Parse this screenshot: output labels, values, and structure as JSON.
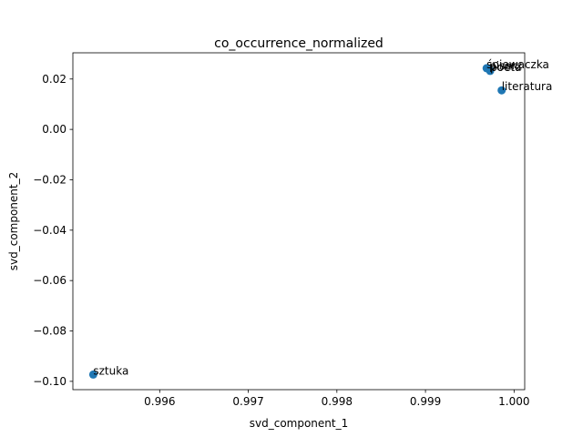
{
  "chart_data": {
    "type": "scatter",
    "title": "co_occurrence_normalized",
    "xlabel": "svd_component_1",
    "ylabel": "svd_component_2",
    "xlim": [
      0.99502,
      1.00012
    ],
    "ylim": [
      -0.1033,
      0.0304
    ],
    "x_ticks": [
      0.996,
      0.997,
      0.998,
      0.999,
      1.0
    ],
    "x_tick_labels": [
      "0.996",
      "0.997",
      "0.998",
      "0.999",
      "1.000"
    ],
    "y_ticks": [
      -0.1,
      -0.08,
      -0.06,
      -0.04,
      -0.02,
      0.0,
      0.02
    ],
    "y_tick_labels": [
      "−0.10",
      "−0.08",
      "−0.06",
      "−0.04",
      "−0.02",
      "0.00",
      "0.02"
    ],
    "grid": false,
    "point_color": "#1f77b4",
    "points": [
      {
        "label": "śpiewaczka",
        "x": 0.99969,
        "y": 0.0243
      },
      {
        "label": "pisarz",
        "x": 0.99972,
        "y": 0.0238
      },
      {
        "label": "poeta",
        "x": 0.99973,
        "y": 0.0232
      },
      {
        "label": "literatura",
        "x": 0.99986,
        "y": 0.0155
      },
      {
        "label": "sztuka",
        "x": 0.99525,
        "y": -0.0973
      }
    ]
  }
}
